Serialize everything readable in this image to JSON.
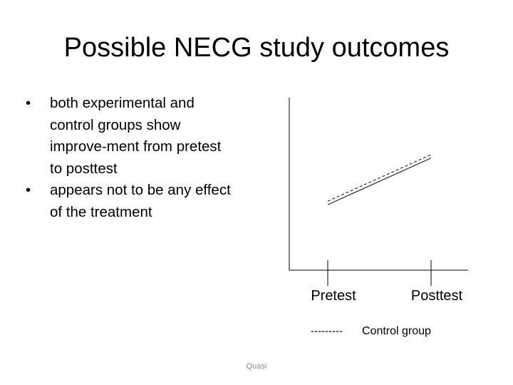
{
  "slide": {
    "title": "Possible NECG study outcomes",
    "bullets": [
      "both experimental and control groups show improve-ment from pretest to posttest",
      "appears not to be any effect of the treatment"
    ],
    "footer": "Quasi"
  },
  "chart_data": {
    "type": "line",
    "categories": [
      "Pretest",
      "Posttest"
    ],
    "ylim": [
      0,
      10
    ],
    "series": [
      {
        "values": [
          3.8,
          6.5
        ],
        "style": "solid",
        "color": "#000000"
      },
      {
        "name": "Control group",
        "values": [
          4.0,
          6.7
        ],
        "style": "dashed",
        "color": "#000000"
      }
    ],
    "legend": {
      "position": "bottom",
      "sample": "---------",
      "label": "Control group"
    }
  }
}
